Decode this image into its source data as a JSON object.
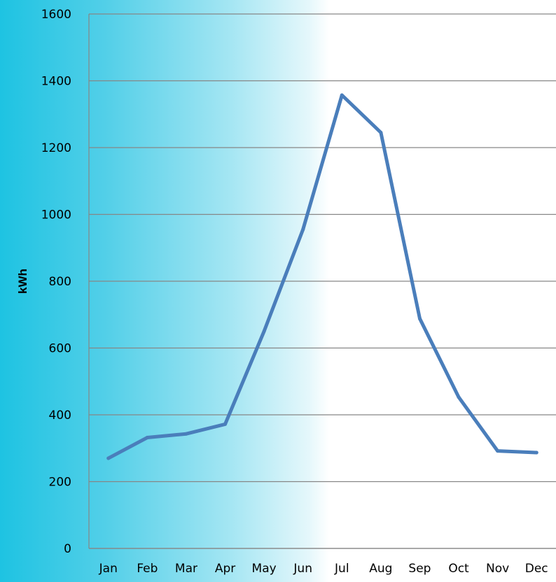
{
  "chart_data": {
    "type": "line",
    "title": "",
    "xlabel": "",
    "ylabel": "kWh",
    "categories": [
      "Jan",
      "Feb",
      "Mar",
      "Apr",
      "May",
      "Jun",
      "Jul",
      "Aug",
      "Sep",
      "Oct",
      "Nov",
      "Dec"
    ],
    "series": [
      {
        "values": [
          270,
          332,
          343,
          372,
          650,
          955,
          1357,
          1245,
          688,
          453,
          292,
          287
        ],
        "color": "#4a7ebb"
      }
    ],
    "ylim": [
      0,
      1600
    ],
    "yticks": [
      "0",
      "200",
      "400",
      "600",
      "800",
      "1000",
      "1200",
      "1400",
      "1600"
    ],
    "grid": true,
    "legend": "none",
    "gridline_color": "#868686",
    "background_gradient": [
      "#1ec3e2",
      "#ffffff"
    ]
  }
}
